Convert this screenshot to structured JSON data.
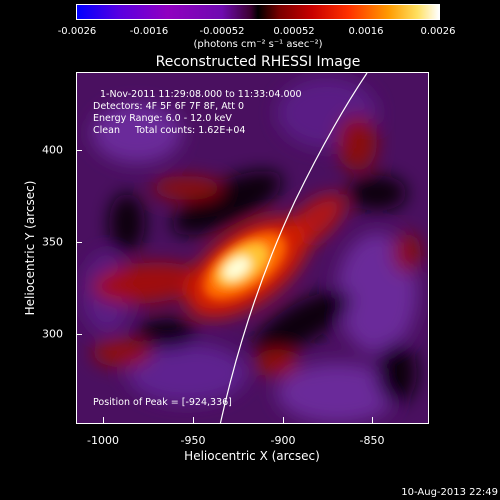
{
  "colorbar": {
    "ticks": [
      "-0.0026",
      "-0.0016",
      "-0.00052",
      "0.00052",
      "0.0016",
      "0.0026"
    ],
    "units": "(photons cm⁻² s⁻¹ asec⁻²)"
  },
  "title": "Reconstructed RHESSI Image",
  "info": {
    "time": "1-Nov-2011 11:29:08.000 to 11:33:04.000",
    "detectors": "Detectors: 4F 5F 6F 7F 8F, Att 0",
    "energy": "Energy Range: 6.0 - 12.0 keV",
    "clean": "Clean     Total counts: 1.62E+04",
    "peak": "Position of Peak = [-924,336]"
  },
  "axes": {
    "xlabel": "Heliocentric X (arcsec)",
    "ylabel": "Heliocentric Y (arcsec)",
    "xticks": [
      "-1000",
      "-950",
      "-900",
      "-850"
    ],
    "yticks": [
      "400",
      "350",
      "300"
    ]
  },
  "timestamp": "10-Aug-2013 22:49",
  "colors": {
    "background": "#000000",
    "axis": "#ffffff",
    "limb": "#ffffff"
  }
}
